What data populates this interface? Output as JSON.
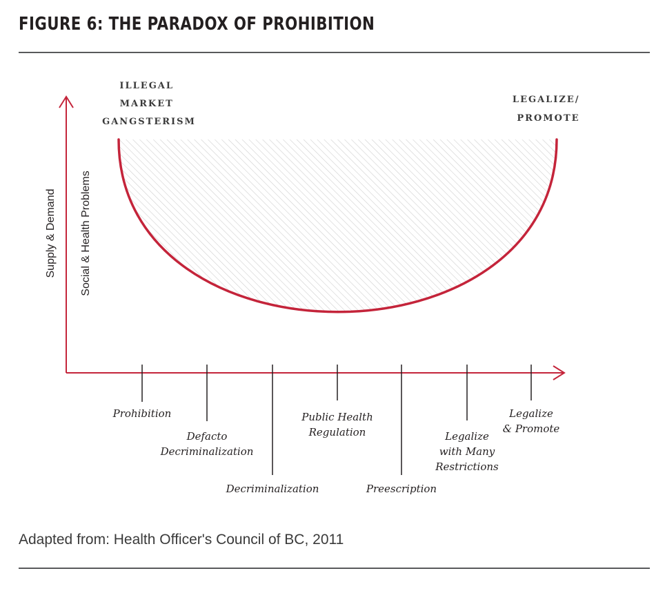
{
  "title": "FIGURE 6: THE PARADOX OF PROHIBITION",
  "colors": {
    "curve": "#c4243a",
    "text": "#231f20",
    "rule": "#58595b",
    "hatch": "#cfcfcf"
  },
  "y_axis": {
    "outer_label": "Supply & Demand",
    "inner_label": "Social & Health Problems"
  },
  "top_labels": {
    "left": [
      "ILLEGAL",
      "MARKET",
      "GANGSTERISM"
    ],
    "right": [
      "LEGALIZE/",
      "PROMOTE"
    ]
  },
  "x_axis_items": [
    {
      "lines": [
        "Prohibition"
      ]
    },
    {
      "lines": [
        "Defacto",
        "Decriminalization"
      ]
    },
    {
      "lines": [
        "Decriminalization"
      ]
    },
    {
      "lines": [
        "Public Health",
        "Regulation"
      ]
    },
    {
      "lines": [
        "Preescription"
      ]
    },
    {
      "lines": [
        "Legalize",
        "with Many",
        "Restrictions"
      ]
    },
    {
      "lines": [
        "Legalize",
        "& Promote"
      ]
    }
  ],
  "source": "Adapted from: Health Officer's Council of BC, 2011"
}
